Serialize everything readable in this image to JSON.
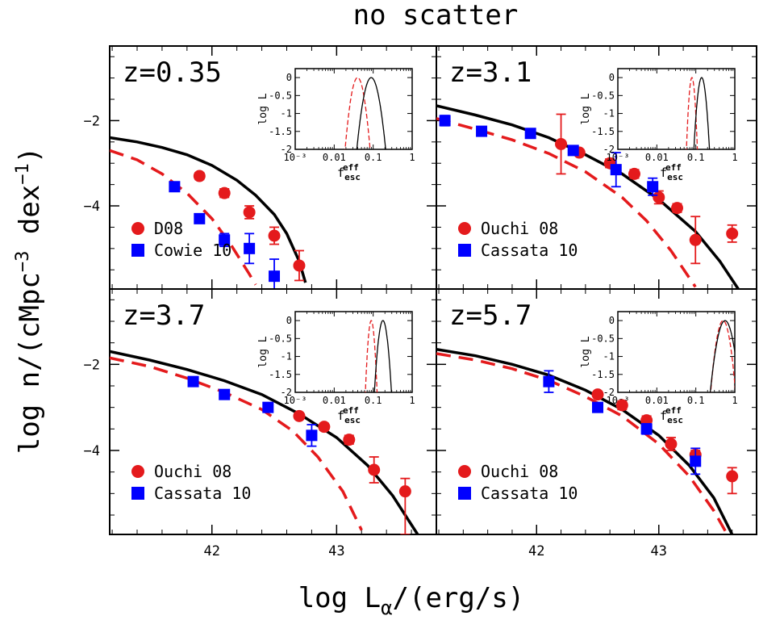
{
  "title": "no scatter",
  "xlabel": "log Lα/(erg/s)",
  "xlabel_main": "log L",
  "xlabel_sub": "α",
  "xlabel_tail": "/(erg/s)",
  "ylabel": "log n/(cMpc⁻³ dex⁻¹)",
  "ylabel_main": "log n/(cMpc",
  "ylabel_exp1": "−3",
  "ylabel_mid": " dex",
  "ylabel_exp2": "−1",
  "ylabel_tail": ")",
  "colors": {
    "model_full": "#000000",
    "model_dashed": "#e41a1c",
    "data_circle": "#e41a1c",
    "data_square": "#0000ff"
  },
  "chart_data": [
    {
      "type": "scatter",
      "panel": "z=0.35",
      "label": "z=0.35",
      "xlim": [
        41.18,
        43.8
      ],
      "ylim": [
        -5.95,
        -0.25
      ],
      "x_ticks": [
        "42",
        "43"
      ],
      "y_ticks": [
        "-2",
        "-4"
      ],
      "legend": [
        "D08",
        "Cowie 10"
      ],
      "series": [
        {
          "name": "D08",
          "marker": "circle",
          "color": "#e41a1c",
          "points": [
            [
              41.9,
              -3.3,
              0.08,
              0.08
            ],
            [
              42.1,
              -3.7,
              0.1,
              0.1
            ],
            [
              42.3,
              -4.15,
              0.15,
              0.15
            ],
            [
              42.5,
              -4.7,
              0.2,
              0.2
            ],
            [
              42.7,
              -5.4,
              0.35,
              0.35
            ]
          ]
        },
        {
          "name": "Cowie 10",
          "marker": "square",
          "color": "#0000ff",
          "points": [
            [
              41.7,
              -3.55,
              0.1,
              0.1
            ],
            [
              41.9,
              -4.3,
              0.05,
              0.05
            ],
            [
              42.1,
              -4.8,
              0.15,
              0.15
            ],
            [
              42.3,
              -5.0,
              0.35,
              0.35
            ],
            [
              42.5,
              -5.65,
              0.4,
              0.4
            ]
          ]
        },
        {
          "name": "model",
          "line": "solid",
          "color": "#000000",
          "points": [
            [
              41.18,
              -2.4
            ],
            [
              41.4,
              -2.5
            ],
            [
              41.6,
              -2.63
            ],
            [
              41.8,
              -2.8
            ],
            [
              42.0,
              -3.05
            ],
            [
              42.2,
              -3.4
            ],
            [
              42.35,
              -3.75
            ],
            [
              42.5,
              -4.2
            ],
            [
              42.6,
              -4.65
            ],
            [
              42.7,
              -5.3
            ],
            [
              42.75,
              -5.8
            ]
          ]
        },
        {
          "name": "dashed model",
          "line": "dashed",
          "color": "#e41a1c",
          "points": [
            [
              41.18,
              -2.7
            ],
            [
              41.4,
              -2.92
            ],
            [
              41.6,
              -3.25
            ],
            [
              41.8,
              -3.7
            ],
            [
              42.0,
              -4.3
            ],
            [
              42.15,
              -4.9
            ],
            [
              42.3,
              -5.6
            ],
            [
              42.35,
              -5.85
            ]
          ]
        }
      ],
      "inset": {
        "xlabel": "fescEFF",
        "xlabel_main": "f",
        "xlabel_sub": "esc",
        "xlabel_sup": "eff",
        "ylabel": "log L",
        "x_ticks": [
          "10⁻³",
          "0.01",
          "0.1",
          "1"
        ],
        "y_ticks": [
          "0",
          "-0.5",
          "-1",
          "-1.5",
          "-2"
        ],
        "xlim": [
          -3,
          0
        ],
        "ylim": [
          -2,
          0.25
        ],
        "solid": {
          "peak": -1.05,
          "width": 0.37
        },
        "dashed": {
          "peak": -1.4,
          "width": 0.32
        }
      }
    },
    {
      "type": "scatter",
      "panel": "z=3.1",
      "label": "z=3.1",
      "xlim": [
        41.18,
        43.8
      ],
      "ylim": [
        -5.95,
        -0.25
      ],
      "x_ticks": [
        "42",
        "43"
      ],
      "y_ticks": [
        "-2",
        "-4"
      ],
      "legend": [
        "Ouchi 08",
        "Cassata 10"
      ],
      "series": [
        {
          "name": "Ouchi 08",
          "marker": "circle",
          "color": "#e41a1c",
          "points": [
            [
              42.2,
              -2.55,
              0.7,
              0.7
            ],
            [
              42.35,
              -2.75,
              0.07,
              0.07
            ],
            [
              42.6,
              -3.0,
              0.1,
              0.1
            ],
            [
              42.8,
              -3.25,
              0.1,
              0.1
            ],
            [
              43.0,
              -3.8,
              0.15,
              0.15
            ],
            [
              43.15,
              -4.05,
              0.1,
              0.1
            ],
            [
              43.3,
              -4.8,
              0.55,
              0.55
            ],
            [
              43.6,
              -4.65,
              0.2,
              0.2
            ]
          ]
        },
        {
          "name": "Cassata 10",
          "marker": "square",
          "color": "#0000ff",
          "points": [
            [
              41.25,
              -2.0,
              0.12,
              0.12
            ],
            [
              41.55,
              -2.25,
              0.06,
              0.06
            ],
            [
              41.95,
              -2.3,
              0.06,
              0.06
            ],
            [
              42.3,
              -2.7,
              0.08,
              0.08
            ],
            [
              42.65,
              -3.15,
              0.4,
              0.4
            ],
            [
              42.95,
              -3.55,
              0.2,
              0.2
            ]
          ]
        },
        {
          "name": "model",
          "line": "solid",
          "color": "#000000",
          "points": [
            [
              41.18,
              -1.65
            ],
            [
              41.5,
              -1.87
            ],
            [
              41.8,
              -2.1
            ],
            [
              42.1,
              -2.4
            ],
            [
              42.4,
              -2.8
            ],
            [
              42.7,
              -3.25
            ],
            [
              43.0,
              -3.85
            ],
            [
              43.3,
              -4.6
            ],
            [
              43.5,
              -5.3
            ],
            [
              43.65,
              -5.95
            ]
          ]
        },
        {
          "name": "dashed model",
          "line": "dashed",
          "color": "#e41a1c",
          "points": [
            [
              41.18,
              -1.95
            ],
            [
              41.5,
              -2.2
            ],
            [
              41.8,
              -2.45
            ],
            [
              42.1,
              -2.77
            ],
            [
              42.4,
              -3.2
            ],
            [
              42.7,
              -3.8
            ],
            [
              42.9,
              -4.35
            ],
            [
              43.1,
              -5.05
            ],
            [
              43.3,
              -5.9
            ]
          ]
        }
      ],
      "inset": {
        "xlabel": "fescEFF",
        "xlabel_main": "f",
        "xlabel_sub": "esc",
        "xlabel_sup": "eff",
        "ylabel": "log L",
        "x_ticks": [
          "10⁻³",
          "0.01",
          "0.1",
          "1"
        ],
        "y_ticks": [
          "0",
          "-0.5",
          "-1",
          "-1.5",
          "-2"
        ],
        "xlim": [
          -3,
          0
        ],
        "ylim": [
          -2,
          0.25
        ],
        "solid": {
          "peak": -0.85,
          "width": 0.2
        },
        "dashed": {
          "peak": -1.1,
          "width": 0.14
        }
      }
    },
    {
      "type": "scatter",
      "panel": "z=3.7",
      "label": "z=3.7",
      "xlim": [
        41.18,
        43.8
      ],
      "ylim": [
        -5.95,
        -0.25
      ],
      "x_ticks": [
        "42",
        "43"
      ],
      "y_ticks": [
        "-2",
        "-4"
      ],
      "legend": [
        "Ouchi 08",
        "Cassata 10"
      ],
      "series": [
        {
          "name": "Ouchi 08",
          "marker": "circle",
          "color": "#e41a1c",
          "points": [
            [
              42.7,
              -3.2,
              0.07,
              0.07
            ],
            [
              42.9,
              -3.45,
              0.08,
              0.08
            ],
            [
              43.1,
              -3.75,
              0.1,
              0.1
            ],
            [
              43.3,
              -4.45,
              0.3,
              0.3
            ],
            [
              43.55,
              -4.95,
              0.3,
              1.0
            ]
          ]
        },
        {
          "name": "Cassata 10",
          "marker": "square",
          "color": "#0000ff",
          "points": [
            [
              41.85,
              -2.4,
              0.06,
              0.06
            ],
            [
              42.1,
              -2.7,
              0.1,
              0.1
            ],
            [
              42.45,
              -3.0,
              0.06,
              0.06
            ],
            [
              42.8,
              -3.65,
              0.25,
              0.25
            ]
          ]
        },
        {
          "name": "model",
          "line": "solid",
          "color": "#000000",
          "points": [
            [
              41.18,
              -1.7
            ],
            [
              41.5,
              -1.9
            ],
            [
              41.8,
              -2.12
            ],
            [
              42.1,
              -2.38
            ],
            [
              42.4,
              -2.7
            ],
            [
              42.7,
              -3.15
            ],
            [
              43.0,
              -3.7
            ],
            [
              43.25,
              -4.35
            ],
            [
              43.45,
              -5.05
            ],
            [
              43.65,
              -5.95
            ]
          ]
        },
        {
          "name": "dashed model",
          "line": "dashed",
          "color": "#e41a1c",
          "points": [
            [
              41.18,
              -1.85
            ],
            [
              41.5,
              -2.05
            ],
            [
              41.8,
              -2.32
            ],
            [
              42.1,
              -2.65
            ],
            [
              42.4,
              -3.05
            ],
            [
              42.65,
              -3.55
            ],
            [
              42.85,
              -4.15
            ],
            [
              43.05,
              -4.95
            ],
            [
              43.2,
              -5.85
            ]
          ]
        }
      ],
      "inset": {
        "xlabel": "fescEFF",
        "xlabel_main": "f",
        "xlabel_sub": "esc",
        "xlabel_sup": "eff",
        "ylabel": "log L",
        "x_ticks": [
          "10⁻³",
          "0.01",
          "0.1",
          "1"
        ],
        "y_ticks": [
          "0",
          "-0.5",
          "-1",
          "-1.5",
          "-2"
        ],
        "xlim": [
          -3,
          0
        ],
        "ylim": [
          -2,
          0.25
        ],
        "solid": {
          "peak": -0.75,
          "width": 0.22
        },
        "dashed": {
          "peak": -1.05,
          "width": 0.15
        }
      }
    },
    {
      "type": "scatter",
      "panel": "z=5.7",
      "label": "z=5.7",
      "xlim": [
        41.18,
        43.8
      ],
      "ylim": [
        -5.95,
        -0.25
      ],
      "x_ticks": [
        "42",
        "43"
      ],
      "y_ticks": [
        "-2",
        "-4"
      ],
      "legend": [
        "Ouchi 08",
        "Cassata 10"
      ],
      "series": [
        {
          "name": "Ouchi 08",
          "marker": "circle",
          "color": "#e41a1c",
          "points": [
            [
              42.5,
              -2.7,
              0.07,
              0.07
            ],
            [
              42.7,
              -2.95,
              0.1,
              0.1
            ],
            [
              42.9,
              -3.3,
              0.1,
              0.1
            ],
            [
              43.1,
              -3.85,
              0.15,
              0.15
            ],
            [
              43.3,
              -4.1,
              0.1,
              0.1
            ],
            [
              43.6,
              -4.6,
              0.2,
              0.4
            ]
          ]
        },
        {
          "name": "Cassata 10",
          "marker": "square",
          "color": "#0000ff",
          "points": [
            [
              42.1,
              -2.4,
              0.25,
              0.25
            ],
            [
              42.5,
              -3.0,
              0.06,
              0.06
            ],
            [
              42.9,
              -3.5,
              0.12,
              0.12
            ],
            [
              43.3,
              -4.25,
              0.3,
              0.3
            ]
          ]
        },
        {
          "name": "model",
          "line": "solid",
          "color": "#000000",
          "points": [
            [
              41.18,
              -1.65
            ],
            [
              41.5,
              -1.8
            ],
            [
              41.8,
              -2.0
            ],
            [
              42.1,
              -2.25
            ],
            [
              42.4,
              -2.6
            ],
            [
              42.7,
              -3.05
            ],
            [
              43.0,
              -3.65
            ],
            [
              43.25,
              -4.35
            ],
            [
              43.45,
              -5.1
            ],
            [
              43.6,
              -5.95
            ]
          ]
        },
        {
          "name": "dashed model",
          "line": "dashed",
          "color": "#e41a1c",
          "points": [
            [
              41.18,
              -1.75
            ],
            [
              41.5,
              -1.9
            ],
            [
              41.8,
              -2.1
            ],
            [
              42.1,
              -2.37
            ],
            [
              42.4,
              -2.75
            ],
            [
              42.7,
              -3.2
            ],
            [
              43.0,
              -3.85
            ],
            [
              43.25,
              -4.6
            ],
            [
              43.45,
              -5.4
            ],
            [
              43.55,
              -5.9
            ]
          ]
        }
      ],
      "inset": {
        "xlabel": "fescEFF",
        "xlabel_main": "f",
        "xlabel_sub": "esc",
        "xlabel_sup": "eff",
        "ylabel": "log L",
        "x_ticks": [
          "10⁻³",
          "0.01",
          "0.1",
          "1"
        ],
        "y_ticks": [
          "0",
          "-0.5",
          "-1",
          "-1.5",
          "-2"
        ],
        "xlim": [
          -3,
          0
        ],
        "ylim": [
          -2,
          0.25
        ],
        "solid": {
          "peak": -0.25,
          "width": 0.38
        },
        "dashed": {
          "peak": -0.3,
          "width": 0.32
        }
      }
    }
  ]
}
